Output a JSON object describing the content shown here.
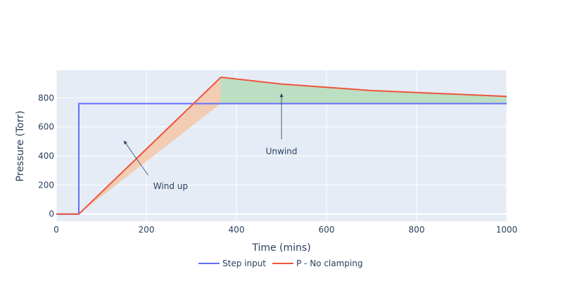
{
  "chart_data": {
    "type": "line",
    "title": "",
    "xlabel": "Time (mins)",
    "ylabel": "Pressure (Torr)",
    "xlim": [
      0,
      1000
    ],
    "ylim": [
      -50,
      990
    ],
    "xticks": [
      0,
      200,
      400,
      600,
      800,
      1000
    ],
    "yticks": [
      0,
      200,
      400,
      600,
      800
    ],
    "grid": true,
    "legend_position": "bottom-center",
    "colors": {
      "plot_bg": "#e5ecf6",
      "grid": "#ffffff",
      "step": "#636efa",
      "p": "#ef553b",
      "windup_fill": "#f4c7a7",
      "unwind_fill": "#b5dcb9",
      "text": "#2a3f5f"
    },
    "series": [
      {
        "name": "Step input",
        "x": [
          0,
          50,
          50,
          1000
        ],
        "y": [
          0,
          0,
          760,
          760
        ]
      },
      {
        "name": "P - No clamping",
        "x": [
          0,
          50,
          365,
          370,
          500,
          700,
          1000
        ],
        "y": [
          0,
          0,
          940,
          940,
          895,
          850,
          810
        ]
      }
    ],
    "fills": [
      {
        "name": "windup",
        "x_range": [
          50,
          365
        ]
      },
      {
        "name": "unwind",
        "x_range": [
          365,
          1000
        ]
      }
    ],
    "annotations": [
      {
        "text": "Wind up",
        "point": [
          150,
          505
        ],
        "label_at": [
          210,
          240
        ]
      },
      {
        "text": "Unwind",
        "point": [
          500,
          830
        ],
        "label_at": [
          500,
          480
        ]
      }
    ]
  }
}
